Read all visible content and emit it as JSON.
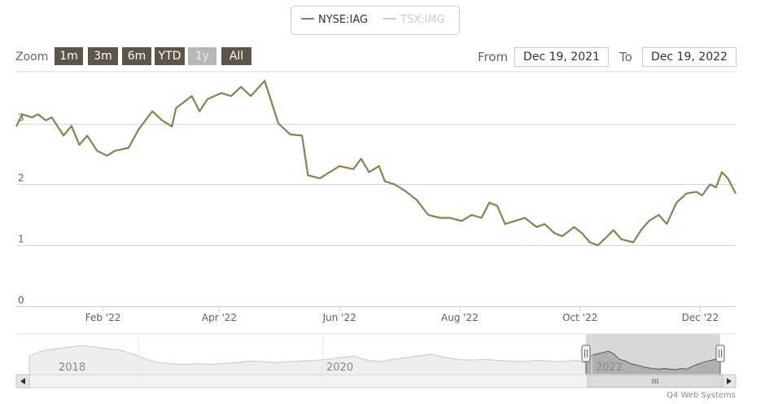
{
  "legend": {
    "items": [
      {
        "label": "NYSE:IAG",
        "color": "#8a8150",
        "active": true
      },
      {
        "label": "TSX:IMG",
        "color": "#cccccc",
        "active": false
      }
    ]
  },
  "zoom": {
    "label": "Zoom",
    "buttons": [
      "1m",
      "3m",
      "6m",
      "YTD",
      "1y",
      "All"
    ],
    "disabled": "1y"
  },
  "range": {
    "from_label": "From",
    "from_value": "Dec 19, 2021",
    "to_label": "To",
    "to_value": "Dec 19, 2022"
  },
  "chart_data": {
    "type": "line",
    "series": [
      {
        "name": "NYSE:IAG",
        "color": "#8a8150"
      }
    ],
    "ylim": [
      0,
      3.85
    ],
    "y_ticks": [
      0,
      1,
      2,
      3
    ],
    "x_ticks": [
      "Feb '22",
      "Apr '22",
      "Jun '22",
      "Aug '22",
      "Oct '22",
      "Dec '22"
    ],
    "x_range": [
      "2021-12-19",
      "2022-12-19"
    ],
    "points": [
      [
        "2021-12-19",
        2.95
      ],
      [
        "2021-12-22",
        3.15
      ],
      [
        "2021-12-27",
        3.1
      ],
      [
        "2021-12-30",
        3.15
      ],
      [
        "2022-01-03",
        3.05
      ],
      [
        "2022-01-06",
        3.1
      ],
      [
        "2022-01-12",
        2.8
      ],
      [
        "2022-01-16",
        2.96
      ],
      [
        "2022-01-20",
        2.65
      ],
      [
        "2022-01-24",
        2.8
      ],
      [
        "2022-01-29",
        2.55
      ],
      [
        "2022-02-03",
        2.47
      ],
      [
        "2022-02-07",
        2.55
      ],
      [
        "2022-02-14",
        2.6
      ],
      [
        "2022-02-19",
        2.9
      ],
      [
        "2022-02-26",
        3.2
      ],
      [
        "2022-03-03",
        3.05
      ],
      [
        "2022-03-08",
        2.95
      ],
      [
        "2022-03-10",
        3.25
      ],
      [
        "2022-03-18",
        3.45
      ],
      [
        "2022-03-22",
        3.2
      ],
      [
        "2022-03-26",
        3.4
      ],
      [
        "2022-04-02",
        3.5
      ],
      [
        "2022-04-07",
        3.45
      ],
      [
        "2022-04-12",
        3.6
      ],
      [
        "2022-04-17",
        3.45
      ],
      [
        "2022-04-24",
        3.7
      ],
      [
        "2022-04-26",
        3.5
      ],
      [
        "2022-05-01",
        3.0
      ],
      [
        "2022-05-07",
        2.82
      ],
      [
        "2022-05-13",
        2.8
      ],
      [
        "2022-05-16",
        2.15
      ],
      [
        "2022-05-22",
        2.1
      ],
      [
        "2022-05-27",
        2.2
      ],
      [
        "2022-06-01",
        2.3
      ],
      [
        "2022-06-08",
        2.25
      ],
      [
        "2022-06-12",
        2.42
      ],
      [
        "2022-06-16",
        2.2
      ],
      [
        "2022-06-21",
        2.3
      ],
      [
        "2022-06-24",
        2.05
      ],
      [
        "2022-06-29",
        2.0
      ],
      [
        "2022-07-04",
        1.9
      ],
      [
        "2022-07-10",
        1.75
      ],
      [
        "2022-07-16",
        1.5
      ],
      [
        "2022-07-22",
        1.45
      ],
      [
        "2022-07-27",
        1.45
      ],
      [
        "2022-08-02",
        1.4
      ],
      [
        "2022-08-07",
        1.5
      ],
      [
        "2022-08-12",
        1.45
      ],
      [
        "2022-08-16",
        1.7
      ],
      [
        "2022-08-20",
        1.65
      ],
      [
        "2022-08-24",
        1.35
      ],
      [
        "2022-08-29",
        1.4
      ],
      [
        "2022-09-03",
        1.45
      ],
      [
        "2022-09-09",
        1.3
      ],
      [
        "2022-09-13",
        1.35
      ],
      [
        "2022-09-18",
        1.2
      ],
      [
        "2022-09-22",
        1.15
      ],
      [
        "2022-09-28",
        1.3
      ],
      [
        "2022-10-02",
        1.2
      ],
      [
        "2022-10-06",
        1.05
      ],
      [
        "2022-10-10",
        1.0
      ],
      [
        "2022-10-14",
        1.12
      ],
      [
        "2022-10-18",
        1.25
      ],
      [
        "2022-10-22",
        1.1
      ],
      [
        "2022-10-28",
        1.05
      ],
      [
        "2022-11-01",
        1.25
      ],
      [
        "2022-11-05",
        1.4
      ],
      [
        "2022-11-10",
        1.5
      ],
      [
        "2022-11-14",
        1.35
      ],
      [
        "2022-11-19",
        1.7
      ],
      [
        "2022-11-24",
        1.85
      ],
      [
        "2022-11-29",
        1.88
      ],
      [
        "2022-12-02",
        1.82
      ],
      [
        "2022-12-06",
        2.0
      ],
      [
        "2022-12-09",
        1.95
      ],
      [
        "2022-12-12",
        2.2
      ],
      [
        "2022-12-15",
        2.1
      ],
      [
        "2022-12-19",
        1.85
      ]
    ]
  },
  "navigator": {
    "year_labels": [
      "2018",
      "2020",
      "2022"
    ],
    "profile": [
      0.55,
      0.7,
      0.75,
      0.8,
      0.85,
      0.82,
      0.75,
      0.72,
      0.6,
      0.45,
      0.35,
      0.32,
      0.3,
      0.32,
      0.3,
      0.33,
      0.35,
      0.4,
      0.38,
      0.35,
      0.38,
      0.4,
      0.42,
      0.45,
      0.5,
      0.55,
      0.42,
      0.38,
      0.45,
      0.5,
      0.55,
      0.6,
      0.5,
      0.45,
      0.42,
      0.45,
      0.42,
      0.4,
      0.38,
      0.42,
      0.4,
      0.38,
      0.42,
      0.35
    ],
    "window_profile": [
      0.6,
      0.7,
      0.75,
      0.8,
      0.85,
      0.75,
      0.55,
      0.5,
      0.4,
      0.35,
      0.3,
      0.25,
      0.22,
      0.2,
      0.22,
      0.2,
      0.18,
      0.22,
      0.2,
      0.3,
      0.38,
      0.45,
      0.5,
      0.55,
      0.48
    ]
  },
  "credit": "Q4 Web Systems"
}
